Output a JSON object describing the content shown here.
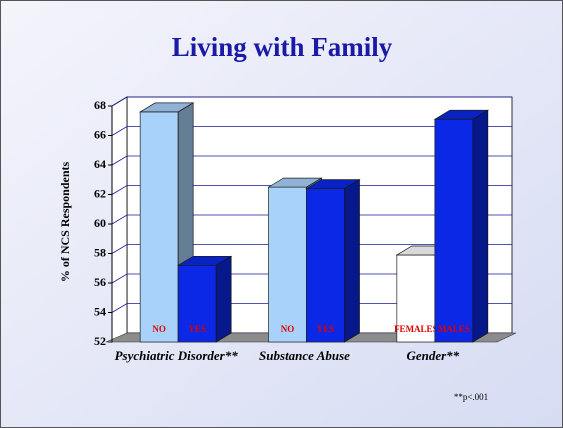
{
  "chart_data": {
    "type": "bar3d",
    "title": "Living with Family",
    "y_label": "% of NCS Respondents",
    "note": "**p<.001",
    "ylim": [
      52,
      68
    ],
    "yticks": [
      52,
      54,
      56,
      58,
      60,
      62,
      64,
      66,
      68
    ],
    "grid": true,
    "groups": [
      {
        "name": "Psychiatric Disorder**",
        "bars": [
          {
            "label": "NO",
            "value": 67.6,
            "color": "#a9d2fa"
          },
          {
            "label": "YES",
            "value": 57.2,
            "color": "#0a28e6"
          }
        ]
      },
      {
        "name": "Substance Abuse",
        "bars": [
          {
            "label": "NO",
            "value": 62.5,
            "color": "#a9d2fa"
          },
          {
            "label": "YES",
            "value": 62.4,
            "color": "#0a28e6"
          }
        ]
      },
      {
        "name": "Gender**",
        "bars": [
          {
            "label": "FEMALES",
            "value": 57.9,
            "color": "#ffffff"
          },
          {
            "label": "MALES",
            "value": 67.1,
            "color": "#0a28e6"
          }
        ]
      }
    ]
  }
}
